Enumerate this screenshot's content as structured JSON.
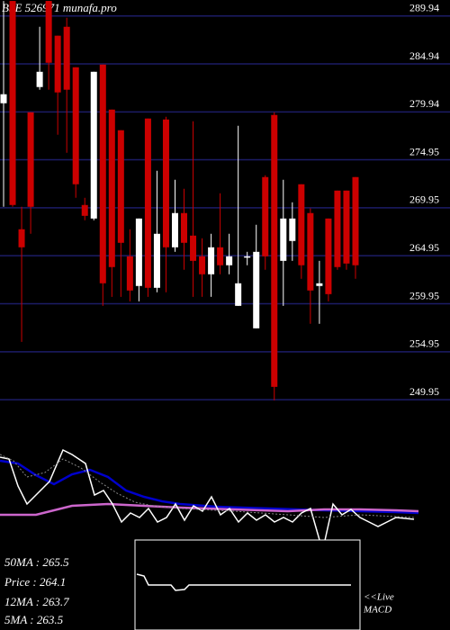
{
  "chart_data": {
    "type": "candlestick",
    "title": "BSE 526971 munafa.pro",
    "ylim": [
      249.4,
      291.6
    ],
    "yticks": [
      289.94,
      284.94,
      279.94,
      274.95,
      269.95,
      264.95,
      259.95,
      254.95,
      249.95
    ],
    "grid": true,
    "up_color": "#ffffff",
    "down_color": "#cc0000",
    "grid_color": "#1c1c66",
    "open": [
      280.84,
      291.5,
      267.71,
      279.9,
      282.53,
      291.5,
      287.88,
      288.81,
      284.59,
      270.24,
      268.83,
      284.87,
      280.18,
      278.03,
      264.89,
      261.8,
      279.25,
      261.61,
      279.15,
      265.83,
      269.4,
      267.05,
      264.89,
      263.02,
      265.83,
      263.96,
      259.73,
      264.89,
      257.39,
      273.15,
      279.62,
      264.42,
      266.49,
      272.4,
      269.4,
      261.8,
      268.83,
      271.74,
      271.74,
      273.15
    ],
    "high": [
      291.5,
      291.5,
      270.05,
      279.9,
      288.81,
      291.5,
      287.88,
      289.75,
      284.59,
      270.99,
      284.12,
      284.87,
      280.18,
      278.03,
      267.71,
      268.83,
      279.25,
      273.8,
      279.43,
      272.87,
      271.93,
      278.96,
      266.77,
      267.24,
      271.46,
      267.24,
      278.5,
      265.36,
      268.18,
      273.34,
      279.9,
      272.87,
      270.52,
      272.4,
      269.89,
      264.42,
      268.83,
      271.74,
      271.74,
      273.15
    ],
    "low": [
      270.05,
      270.05,
      255.98,
      267.24,
      282.25,
      282.25,
      277.56,
      275.68,
      270.99,
      268.65,
      268.65,
      259.73,
      260.67,
      260.67,
      260.2,
      260.2,
      260.67,
      261.14,
      261.14,
      265.36,
      263.49,
      260.67,
      260.67,
      260.67,
      263.02,
      263.02,
      259.73,
      263.96,
      257.39,
      263.49,
      249.88,
      259.73,
      264.42,
      262.55,
      257.86,
      257.86,
      260.2,
      263.49,
      263.49,
      262.55
    ],
    "close": [
      281.78,
      270.24,
      265.83,
      270.05,
      284.12,
      285.06,
      281.97,
      282.25,
      272.4,
      269.11,
      284.12,
      262.08,
      263.77,
      266.3,
      261.33,
      268.83,
      261.61,
      267.24,
      265.83,
      269.4,
      266.3,
      264.42,
      263.02,
      265.83,
      263.96,
      264.89,
      262.08,
      264.89,
      265.36,
      264.89,
      251.29,
      268.83,
      268.83,
      263.96,
      261.33,
      262.08,
      260.95,
      263.77,
      264.14,
      263.96
    ],
    "indicator_labels": [
      "50MA : 265.5",
      "Price : 264.1",
      "12MA : 263.7",
      "5MA : 263.5"
    ],
    "macd_label": [
      "<<Live",
      "MACD"
    ]
  }
}
